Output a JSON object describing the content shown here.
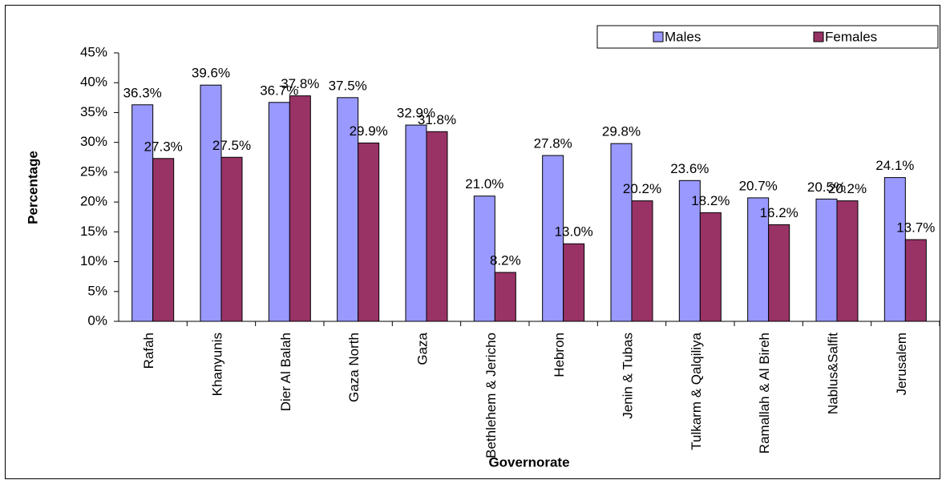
{
  "chart_data": {
    "type": "bar",
    "x_label": "Governorate",
    "y_label": "Percentage",
    "categories": [
      "Rafah",
      "Khanyunis",
      "Dier Al Balah",
      "Gaza North",
      "Gaza",
      "Bethlehem & Jericho",
      "Hebron",
      "Jenin & Tubas",
      "Tulkarm & Qalqiliya",
      "Ramallah & Al Bireh",
      "Nablus&Salfit",
      "Jerusalem"
    ],
    "series": [
      {
        "name": "Males",
        "color": "#9999ff",
        "values": [
          36.3,
          39.6,
          36.7,
          37.5,
          32.9,
          21.0,
          27.8,
          29.8,
          23.6,
          20.7,
          20.5,
          24.1
        ],
        "value_labels": [
          "36.3%",
          "39.6%",
          "36.7%",
          "37.5%",
          "32.9%",
          "21.0%",
          "27.8%",
          "29.8%",
          "23.6%",
          "20.7%",
          "20.5%",
          "24.1%"
        ]
      },
      {
        "name": "Females",
        "color": "#993366",
        "values": [
          27.3,
          27.5,
          37.8,
          29.9,
          31.8,
          8.2,
          13.0,
          20.2,
          18.2,
          16.2,
          20.2,
          13.7
        ],
        "value_labels": [
          "27.3%",
          "27.5%",
          "37.8%",
          "29.9%",
          "31.8%",
          "8.2%",
          "13.0%",
          "20.2%",
          "18.2%",
          "16.2%",
          "20.2%",
          "13.7%"
        ]
      }
    ],
    "ylim": [
      0,
      45
    ],
    "yticks": [
      {
        "value": 0,
        "label": "0%"
      },
      {
        "value": 5,
        "label": "5%"
      },
      {
        "value": 10,
        "label": "10%"
      },
      {
        "value": 15,
        "label": "15%"
      },
      {
        "value": 20,
        "label": "20%"
      },
      {
        "value": 25,
        "label": "25%"
      },
      {
        "value": 30,
        "label": "30%"
      },
      {
        "value": 35,
        "label": "35%"
      },
      {
        "value": 40,
        "label": "40%"
      },
      {
        "value": 45,
        "label": "45%"
      }
    ],
    "grid": false,
    "legend": "top-right"
  }
}
